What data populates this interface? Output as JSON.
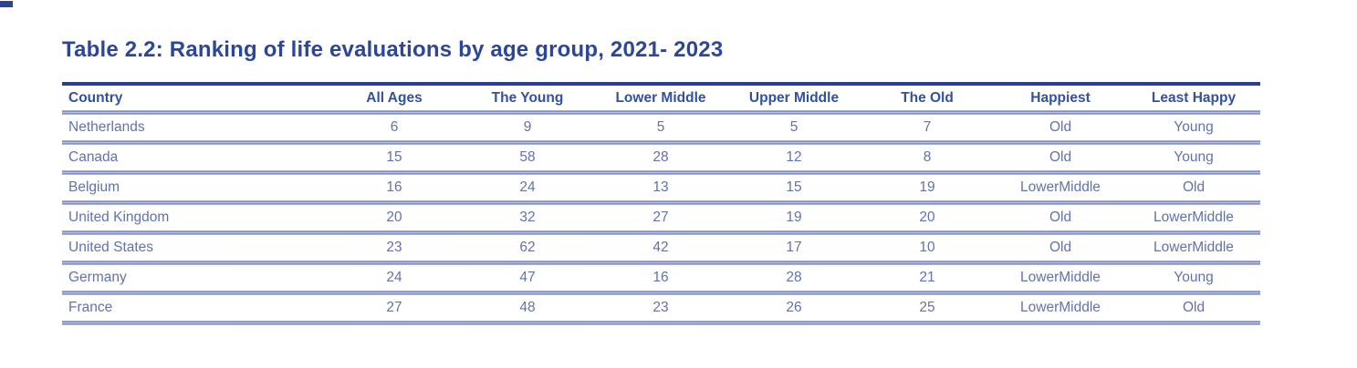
{
  "title": "Table 2.2: Ranking of life evaluations by age group, 2021- 2023",
  "colors": {
    "title_text": "#2c4799",
    "header_text": "#33519f",
    "body_text": "#6172ae",
    "top_rule": "#2b3f91",
    "divider_rule": "#7381bb",
    "background": "#ffffff"
  },
  "table": {
    "columns": [
      "Country",
      "All Ages",
      "The Young",
      "Lower Middle",
      "Upper Middle",
      "The Old",
      "Happiest",
      "Least Happy"
    ],
    "rows": [
      [
        "Netherlands",
        "6",
        "9",
        "5",
        "5",
        "7",
        "Old",
        "Young"
      ],
      [
        "Canada",
        "15",
        "58",
        "28",
        "12",
        "8",
        "Old",
        "Young"
      ],
      [
        "Belgium",
        "16",
        "24",
        "13",
        "15",
        "19",
        "LowerMiddle",
        "Old"
      ],
      [
        "United Kingdom",
        "20",
        "32",
        "27",
        "19",
        "20",
        "Old",
        "LowerMiddle"
      ],
      [
        "United States",
        "23",
        "62",
        "42",
        "17",
        "10",
        "Old",
        "LowerMiddle"
      ],
      [
        "Germany",
        "24",
        "47",
        "16",
        "28",
        "21",
        "LowerMiddle",
        "Young"
      ],
      [
        "France",
        "27",
        "48",
        "23",
        "26",
        "25",
        "LowerMiddle",
        "Old"
      ]
    ]
  }
}
